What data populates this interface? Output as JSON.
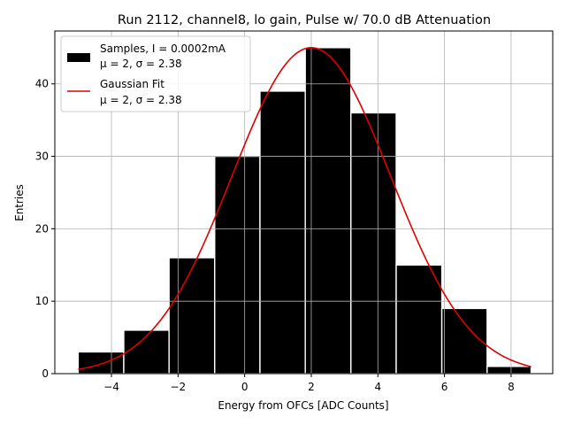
{
  "chart_data": {
    "type": "bar",
    "title": "Run 2112, channel8, lo gain, Pulse w/ 70.0 dB Attenuation",
    "xlabel": "Energy from OFCs [ADC Counts]",
    "ylabel": "Entries",
    "xlim": [
      -5.7,
      9.25
    ],
    "ylim": [
      0,
      47.3
    ],
    "xticks": [
      -4,
      -2,
      0,
      2,
      4,
      6,
      8
    ],
    "yticks": [
      0,
      10,
      20,
      30,
      40
    ],
    "grid": true,
    "bins": [
      {
        "start": -5.0,
        "end": -3.63,
        "count": 3
      },
      {
        "start": -3.63,
        "end": -2.27,
        "count": 6
      },
      {
        "start": -2.27,
        "end": -0.9,
        "count": 16
      },
      {
        "start": -0.9,
        "end": 0.46,
        "count": 30
      },
      {
        "start": 0.46,
        "end": 1.82,
        "count": 39
      },
      {
        "start": 1.82,
        "end": 3.19,
        "count": 45
      },
      {
        "start": 3.19,
        "end": 4.55,
        "count": 36
      },
      {
        "start": 4.55,
        "end": 5.92,
        "count": 15
      },
      {
        "start": 5.92,
        "end": 7.28,
        "count": 9
      },
      {
        "start": 7.28,
        "end": 8.6,
        "count": 1
      }
    ],
    "fit": {
      "type": "gaussian",
      "mu": 2.0,
      "sigma": 2.38,
      "amplitude": 45,
      "x_range": [
        -5.0,
        8.6
      ],
      "color": "#e00000"
    },
    "bar_color": "#000000",
    "legend": {
      "position": "top-left",
      "entries": [
        {
          "name": "Samples, I = 0.0002mA",
          "stats": "μ = 2, σ = 2.38",
          "marker": "patch"
        },
        {
          "name": "Gaussian Fit",
          "stats": "μ = 2, σ = 2.38",
          "marker": "line"
        }
      ]
    }
  }
}
